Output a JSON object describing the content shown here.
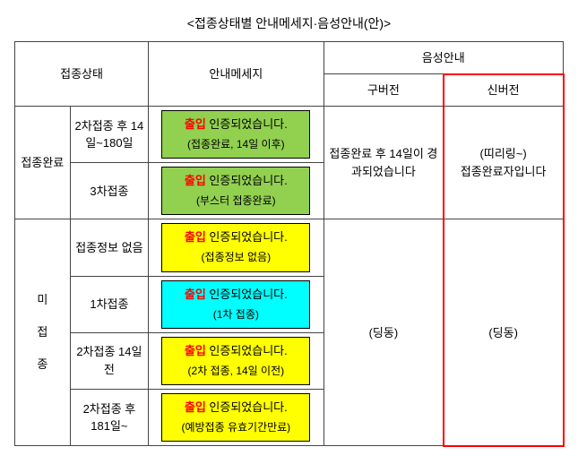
{
  "title": "<접종상태별 안내메세지·음성안내(안)>",
  "headers": {
    "status": "접종상태",
    "message": "안내메세지",
    "audio": "음성안내",
    "audio_old": "구버전",
    "audio_new": "신버전"
  },
  "groups": {
    "complete": "접종완료",
    "incomplete_1": "미",
    "incomplete_2": "접",
    "incomplete_3": "종"
  },
  "rows": [
    {
      "sub": "2차접종 후 14일~180일",
      "msg_kw": "출입",
      "msg_main": " 인증되었습니다.",
      "msg_sub": "(접종완료, 14일 이후)",
      "pill": "green"
    },
    {
      "sub": "3차접종",
      "msg_kw": "출입",
      "msg_main": " 인증되었습니다.",
      "msg_sub": "(부스터 접종완료)",
      "pill": "green"
    },
    {
      "sub": "접종정보 없음",
      "msg_kw": "출입",
      "msg_main": " 인증되었습니다.",
      "msg_sub": "(접종정보 없음)",
      "pill": "yellow"
    },
    {
      "sub": "1차접종",
      "msg_kw": "출입",
      "msg_main": " 인증되었습니다.",
      "msg_sub": "(1차 접종)",
      "pill": "cyan"
    },
    {
      "sub": "2차접종 14일 전",
      "msg_kw": "출입",
      "msg_main": " 인증되었습니다.",
      "msg_sub": "(2차 접종, 14일 이전)",
      "pill": "yellow"
    },
    {
      "sub": "2차접종 후 181일~",
      "msg_kw": "출입",
      "msg_main": " 인증되었습니다.",
      "msg_sub": "(예방접종 유효기간만료)",
      "pill": "yellow"
    }
  ],
  "audio": {
    "complete_old": "접종완료 후 14일이 경과되었습니다",
    "complete_new_1": "(띠리링~)",
    "complete_new_2": "접종완료자입니다",
    "incomplete_old": "(딩동)",
    "incomplete_new": "(딩동)"
  }
}
